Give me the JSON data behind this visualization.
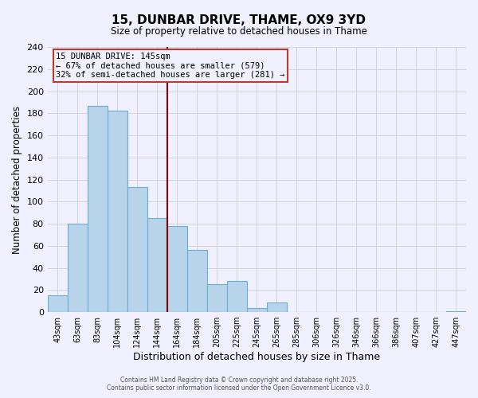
{
  "title": "15, DUNBAR DRIVE, THAME, OX9 3YD",
  "subtitle": "Size of property relative to detached houses in Thame",
  "xlabel": "Distribution of detached houses by size in Thame",
  "ylabel": "Number of detached properties",
  "bin_labels": [
    "43sqm",
    "63sqm",
    "83sqm",
    "104sqm",
    "124sqm",
    "144sqm",
    "164sqm",
    "184sqm",
    "205sqm",
    "225sqm",
    "245sqm",
    "265sqm",
    "285sqm",
    "306sqm",
    "326sqm",
    "346sqm",
    "366sqm",
    "386sqm",
    "407sqm",
    "427sqm",
    "447sqm"
  ],
  "bar_values": [
    15,
    80,
    187,
    182,
    113,
    85,
    78,
    56,
    25,
    28,
    4,
    9,
    0,
    0,
    0,
    0,
    0,
    0,
    0,
    0,
    1
  ],
  "bar_color": "#b8d4eb",
  "bar_edge_color": "#6aaed6",
  "vertical_line_x": 5.5,
  "vertical_line_color": "#8b0000",
  "annotation_line1": "15 DUNBAR DRIVE: 145sqm",
  "annotation_line2": "← 67% of detached houses are smaller (579)",
  "annotation_line3": "32% of semi-detached houses are larger (281) →",
  "annotation_box_color": "#c0392b",
  "ylim": [
    0,
    240
  ],
  "yticks": [
    0,
    20,
    40,
    60,
    80,
    100,
    120,
    140,
    160,
    180,
    200,
    220,
    240
  ],
  "grid_color": "#d0d0d0",
  "background_color": "#f0f0ff",
  "footer_line1": "Contains HM Land Registry data © Crown copyright and database right 2025.",
  "footer_line2": "Contains public sector information licensed under the Open Government Licence v3.0."
}
